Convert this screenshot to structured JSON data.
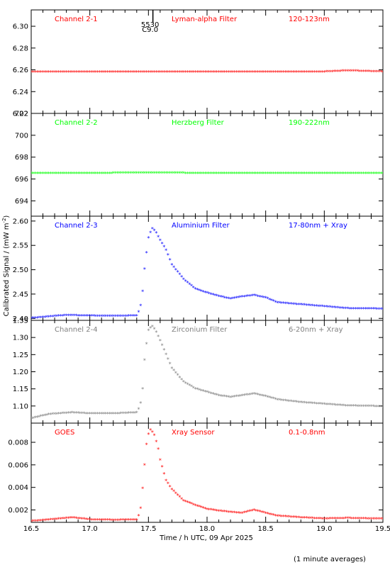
{
  "figure": {
    "xlabel": "Time / h UTC, 09 Apr 2025",
    "ylabel": "Calibrated Signal / (mW m",
    "ylabel_sup": "-2",
    "ylabel_close": ")",
    "footnote": "(1 minute averages)",
    "flare_marker": {
      "label_top": "5530",
      "label_bottom": "C9.0",
      "x": 17.52
    }
  },
  "chart_data": [
    {
      "type": "scatter",
      "panel": "Channel 2-1",
      "filter": "Lyman-alpha Filter",
      "band": "120-123nm",
      "color": "#ff0000",
      "xlim": [
        16.5,
        19.5
      ],
      "ylim": [
        6.22,
        6.315
      ],
      "yticks": [
        "6.22",
        "6.24",
        "6.26",
        "6.28",
        "6.30"
      ],
      "ytick_values": [
        6.22,
        6.24,
        6.26,
        6.28,
        6.3
      ],
      "x": [
        16.5,
        17.0,
        17.5,
        18.0,
        18.5,
        19.0,
        19.2,
        19.5
      ],
      "y": [
        6.258,
        6.258,
        6.258,
        6.258,
        6.258,
        6.258,
        6.259,
        6.258
      ]
    },
    {
      "type": "scatter",
      "panel": "Channel 2-2",
      "filter": "Herzberg Filter",
      "band": "190-222nm",
      "color": "#00ff00",
      "xlim": [
        16.5,
        19.5
      ],
      "ylim": [
        692.6,
        702.0
      ],
      "yticks": [
        "694",
        "696",
        "698",
        "700",
        "702"
      ],
      "ytick_values": [
        694,
        696,
        698,
        700,
        702
      ],
      "x": [
        16.5,
        17.0,
        17.5,
        18.0,
        18.5,
        19.0,
        19.5
      ],
      "y": [
        696.5,
        696.5,
        696.55,
        696.5,
        696.5,
        696.5,
        696.5
      ]
    },
    {
      "type": "scatter",
      "panel": "Channel 2-3",
      "filter": "Aluminium Filter",
      "band": "17-80nm + Xray",
      "color": "#0000ff",
      "xlim": [
        16.5,
        19.5
      ],
      "ylim": [
        2.396,
        2.61
      ],
      "yticks": [
        "2.40",
        "2.45",
        "2.50",
        "2.55",
        "2.60"
      ],
      "ytick_values": [
        2.4,
        2.45,
        2.5,
        2.55,
        2.6
      ],
      "x": [
        16.5,
        16.7,
        16.8,
        16.95,
        17.2,
        17.4,
        17.43,
        17.45,
        17.47,
        17.5,
        17.53,
        17.56,
        17.6,
        17.65,
        17.7,
        17.8,
        17.9,
        18.0,
        18.1,
        18.2,
        18.3,
        18.4,
        18.5,
        18.6,
        18.8,
        19.0,
        19.2,
        19.5
      ],
      "y": [
        2.4,
        2.404,
        2.406,
        2.405,
        2.404,
        2.405,
        2.42,
        2.455,
        2.51,
        2.565,
        2.585,
        2.578,
        2.56,
        2.54,
        2.51,
        2.48,
        2.46,
        2.452,
        2.445,
        2.44,
        2.444,
        2.447,
        2.442,
        2.432,
        2.428,
        2.424,
        2.42,
        2.419
      ]
    },
    {
      "type": "scatter",
      "panel": "Channel 2-4",
      "filter": "Zirconium Filter",
      "band": "6-20nm + Xray",
      "color": "#808080",
      "xlim": [
        16.5,
        19.5
      ],
      "ylim": [
        1.05,
        1.35
      ],
      "yticks": [
        "1.10",
        "1.15",
        "1.20",
        "1.25",
        "1.30",
        "1.35"
      ],
      "ytick_values": [
        1.1,
        1.15,
        1.2,
        1.25,
        1.3,
        1.35
      ],
      "x": [
        16.5,
        16.65,
        16.85,
        17.0,
        17.2,
        17.4,
        17.43,
        17.45,
        17.47,
        17.5,
        17.53,
        17.56,
        17.6,
        17.65,
        17.7,
        17.8,
        17.9,
        18.0,
        18.1,
        18.2,
        18.3,
        18.4,
        18.5,
        18.6,
        18.8,
        19.0,
        19.2,
        19.5
      ],
      "y": [
        1.063,
        1.075,
        1.08,
        1.077,
        1.077,
        1.08,
        1.1,
        1.15,
        1.25,
        1.32,
        1.333,
        1.32,
        1.29,
        1.25,
        1.21,
        1.17,
        1.15,
        1.14,
        1.13,
        1.125,
        1.13,
        1.135,
        1.128,
        1.118,
        1.11,
        1.105,
        1.1,
        1.098
      ]
    },
    {
      "type": "scatter",
      "panel": "GOES",
      "filter": "Xray Sensor",
      "band": "0.1-0.8nm",
      "color": "#ff0000",
      "xlim": [
        16.5,
        19.5
      ],
      "ylim": [
        0.0009,
        0.0097
      ],
      "yticks": [
        "0.002",
        "0.004",
        "0.006",
        "0.008"
      ],
      "ytick_values": [
        0.002,
        0.004,
        0.006,
        0.008
      ],
      "x": [
        16.5,
        16.7,
        16.85,
        17.0,
        17.2,
        17.4,
        17.43,
        17.45,
        17.47,
        17.49,
        17.52,
        17.55,
        17.58,
        17.6,
        17.65,
        17.7,
        17.8,
        17.9,
        18.0,
        18.1,
        18.2,
        18.3,
        18.4,
        18.5,
        18.6,
        18.8,
        19.0,
        19.2,
        19.5
      ],
      "y": [
        0.00098,
        0.00115,
        0.0013,
        0.00112,
        0.00108,
        0.0011,
        0.0018,
        0.0039,
        0.0064,
        0.0085,
        0.00915,
        0.0086,
        0.0076,
        0.0064,
        0.0046,
        0.0038,
        0.0028,
        0.0024,
        0.00205,
        0.0019,
        0.00178,
        0.0017,
        0.00198,
        0.0017,
        0.00145,
        0.0013,
        0.0012,
        0.00125,
        0.00118
      ]
    }
  ],
  "xaxis": {
    "ticks": [
      "16.5",
      "17.0",
      "17.5",
      "18.0",
      "18.5",
      "19.0",
      "19.5"
    ],
    "tick_values": [
      16.5,
      17.0,
      17.5,
      18.0,
      18.5,
      19.0,
      19.5
    ]
  }
}
